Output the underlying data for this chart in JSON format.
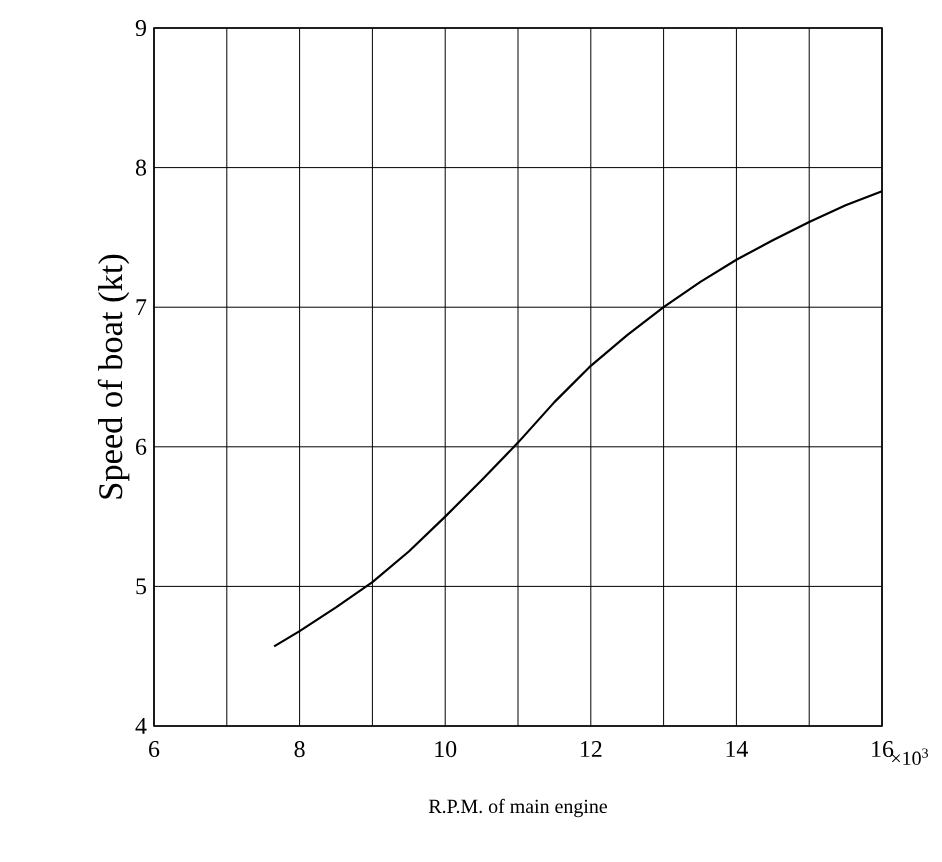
{
  "chart_data": {
    "type": "line",
    "xlabel": "R.P.M. of main engine",
    "ylabel": "Speed of boat (kt)",
    "annotations": [
      "×10$^{3}$"
    ],
    "x": [
      7.65,
      8,
      8.5,
      9,
      9.5,
      10,
      10.5,
      11,
      11.5,
      12,
      12.5,
      13,
      13.5,
      14,
      14.5,
      15,
      15.5,
      16
    ],
    "series": [
      {
        "color": "#000000",
        "values": [
          4.57,
          4.68,
          4.85,
          5.03,
          5.25,
          5.5,
          5.76,
          6.03,
          6.32,
          6.58,
          6.8,
          7.0,
          7.18,
          7.34,
          7.48,
          7.61,
          7.73,
          7.83
        ]
      }
    ],
    "xlim": [
      6,
      16
    ],
    "ylim": [
      4,
      9
    ],
    "xticks": [
      6,
      {
        "value": 7,
        "label": null
      },
      8,
      {
        "value": 9,
        "label": null
      },
      10,
      {
        "value": 11,
        "label": null
      },
      12,
      {
        "value": 13,
        "label": null
      },
      14,
      {
        "value": 15,
        "label": null
      },
      16
    ],
    "yticks": [
      4,
      5,
      6,
      7,
      8,
      9
    ],
    "grid": true,
    "marker": "none",
    "line_style": "solid"
  }
}
